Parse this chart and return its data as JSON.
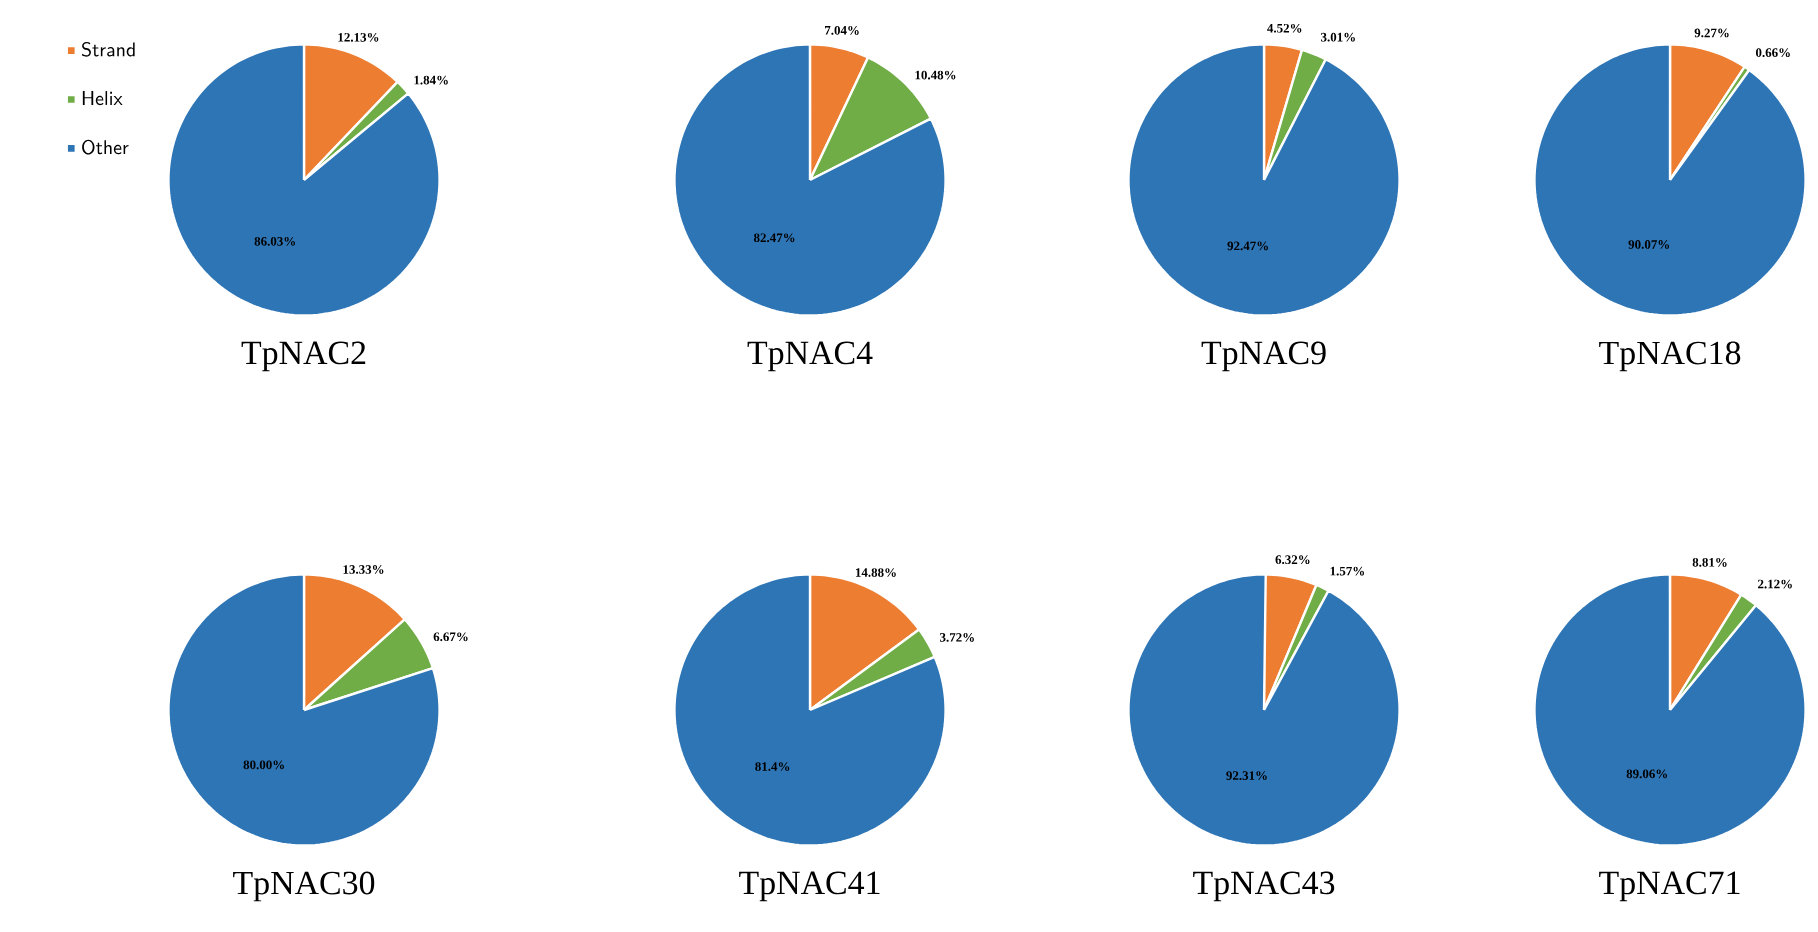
{
  "chart_data": [
    {
      "type": "pie",
      "title": "TpNAC2",
      "categories": [
        "Strand",
        "Helix",
        "Other"
      ],
      "values": [
        12.13,
        1.84,
        86.03
      ],
      "value_labels": [
        "12.13%",
        "1.84%",
        "86.03%"
      ],
      "colors": [
        "#ed7d31",
        "#70ad47",
        "#2e75b6"
      ],
      "legend": "left"
    },
    {
      "type": "pie",
      "title": "TpNAC4",
      "values": [
        7.04,
        10.48,
        82.47
      ],
      "value_labels": [
        "7.04%",
        "10.48%",
        "82.47%"
      ],
      "colors": [
        "#ed7d31",
        "#70ad47",
        "#2e75b6"
      ]
    },
    {
      "type": "pie",
      "title": "TpNAC9",
      "values": [
        4.52,
        3.01,
        92.47
      ],
      "value_labels": [
        "4.52%",
        "3.01%",
        "92.47%"
      ],
      "colors": [
        "#ed7d31",
        "#70ad47",
        "#2e75b6"
      ]
    },
    {
      "type": "pie",
      "title": "TpNAC18",
      "values": [
        9.27,
        0.66,
        90.07
      ],
      "value_labels": [
        "9.27%",
        "0.66%",
        "90.07%"
      ],
      "colors": [
        "#ed7d31",
        "#70ad47",
        "#2e75b6"
      ]
    },
    {
      "type": "pie",
      "title": "TpNAC30",
      "values": [
        13.33,
        6.67,
        80.0
      ],
      "value_labels": [
        "13.33%",
        "6.67%",
        "80.00%"
      ],
      "colors": [
        "#ed7d31",
        "#70ad47",
        "#2e75b6"
      ]
    },
    {
      "type": "pie",
      "title": "TpNAC41",
      "values": [
        14.88,
        3.72,
        81.4
      ],
      "value_labels": [
        "14.88%",
        "3.72%",
        "81.4%"
      ],
      "colors": [
        "#ed7d31",
        "#70ad47",
        "#2e75b6"
      ]
    },
    {
      "type": "pie",
      "title": "TpNAC43",
      "values": [
        6.32,
        1.57,
        92.31
      ],
      "value_labels": [
        "6.32%",
        "1.57%",
        "92.31%"
      ],
      "colors": [
        "#ed7d31",
        "#70ad47",
        "#2e75b6"
      ]
    },
    {
      "type": "pie",
      "title": "TpNAC71",
      "values": [
        8.81,
        2.12,
        89.06
      ],
      "value_labels": [
        "8.81%",
        "2.12%",
        "89.06%"
      ],
      "colors": [
        "#ed7d31",
        "#70ad47",
        "#2e75b6"
      ]
    }
  ]
}
